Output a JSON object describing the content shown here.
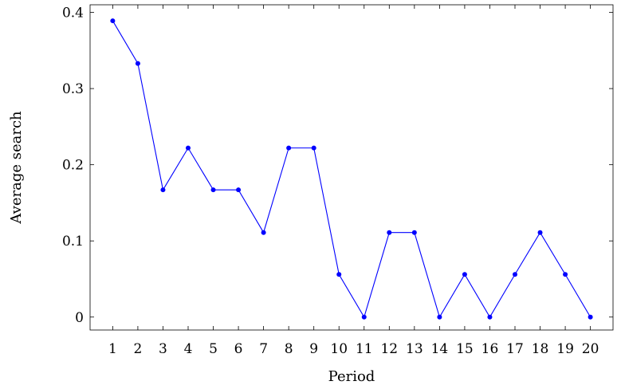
{
  "chart_data": {
    "type": "line",
    "xlabel": "Period",
    "ylabel": "Average search",
    "x": [
      1,
      2,
      3,
      4,
      5,
      6,
      7,
      8,
      9,
      10,
      11,
      12,
      13,
      14,
      15,
      16,
      17,
      18,
      19,
      20
    ],
    "series": [
      {
        "values": [
          0.389,
          0.333,
          0.167,
          0.222,
          0.167,
          0.167,
          0.111,
          0.222,
          0.222,
          0.056,
          0.0,
          0.111,
          0.111,
          0.0,
          0.056,
          0.0,
          0.056,
          0.111,
          0.056,
          0.0
        ],
        "color": "#0000ff"
      }
    ],
    "yticks": [
      "0",
      "0.1",
      "0.2",
      "0.3",
      "0.4"
    ],
    "xticks": [
      "1",
      "2",
      "3",
      "4",
      "5",
      "6",
      "7",
      "8",
      "9",
      "10",
      "11",
      "12",
      "13",
      "14",
      "15",
      "16",
      "17",
      "18",
      "19",
      "20"
    ],
    "ylim": [
      -0.017,
      0.41
    ],
    "xlim": [
      0.1,
      20.9
    ],
    "grid": false,
    "marker": "circle"
  }
}
